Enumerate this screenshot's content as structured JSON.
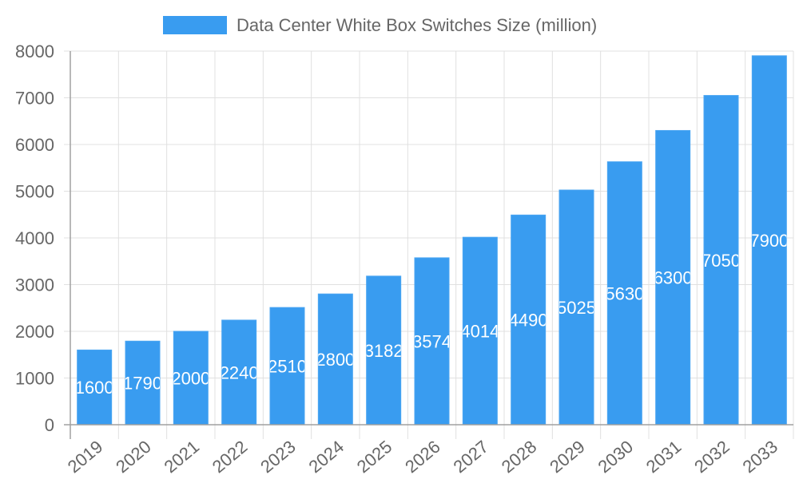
{
  "chart_data": {
    "type": "bar",
    "title": "",
    "xlabel": "",
    "ylabel": "",
    "categories": [
      "2019",
      "2020",
      "2021",
      "2022",
      "2023",
      "2024",
      "2025",
      "2026",
      "2027",
      "2028",
      "2029",
      "2030",
      "2031",
      "2032",
      "2033"
    ],
    "series": [
      {
        "name": "Data Center White Box Switches Size (million)",
        "values": [
          1600,
          1790,
          2000,
          2240,
          2510,
          2800,
          3182,
          3574,
          4014,
          4490,
          5025,
          5630,
          6300,
          7050,
          7900
        ]
      }
    ],
    "ylim": [
      0,
      8000
    ],
    "yticks": [
      0,
      1000,
      2000,
      3000,
      4000,
      5000,
      6000,
      7000,
      8000
    ],
    "grid": true,
    "legend_position": "top",
    "data_labels": true,
    "colors": {
      "bar": "#399cf0",
      "bar_border": "#4aa5f2",
      "grid": "#e0e0e0",
      "axis": "#a0a0a0",
      "text": "#666666",
      "label": "#ffffff"
    }
  }
}
